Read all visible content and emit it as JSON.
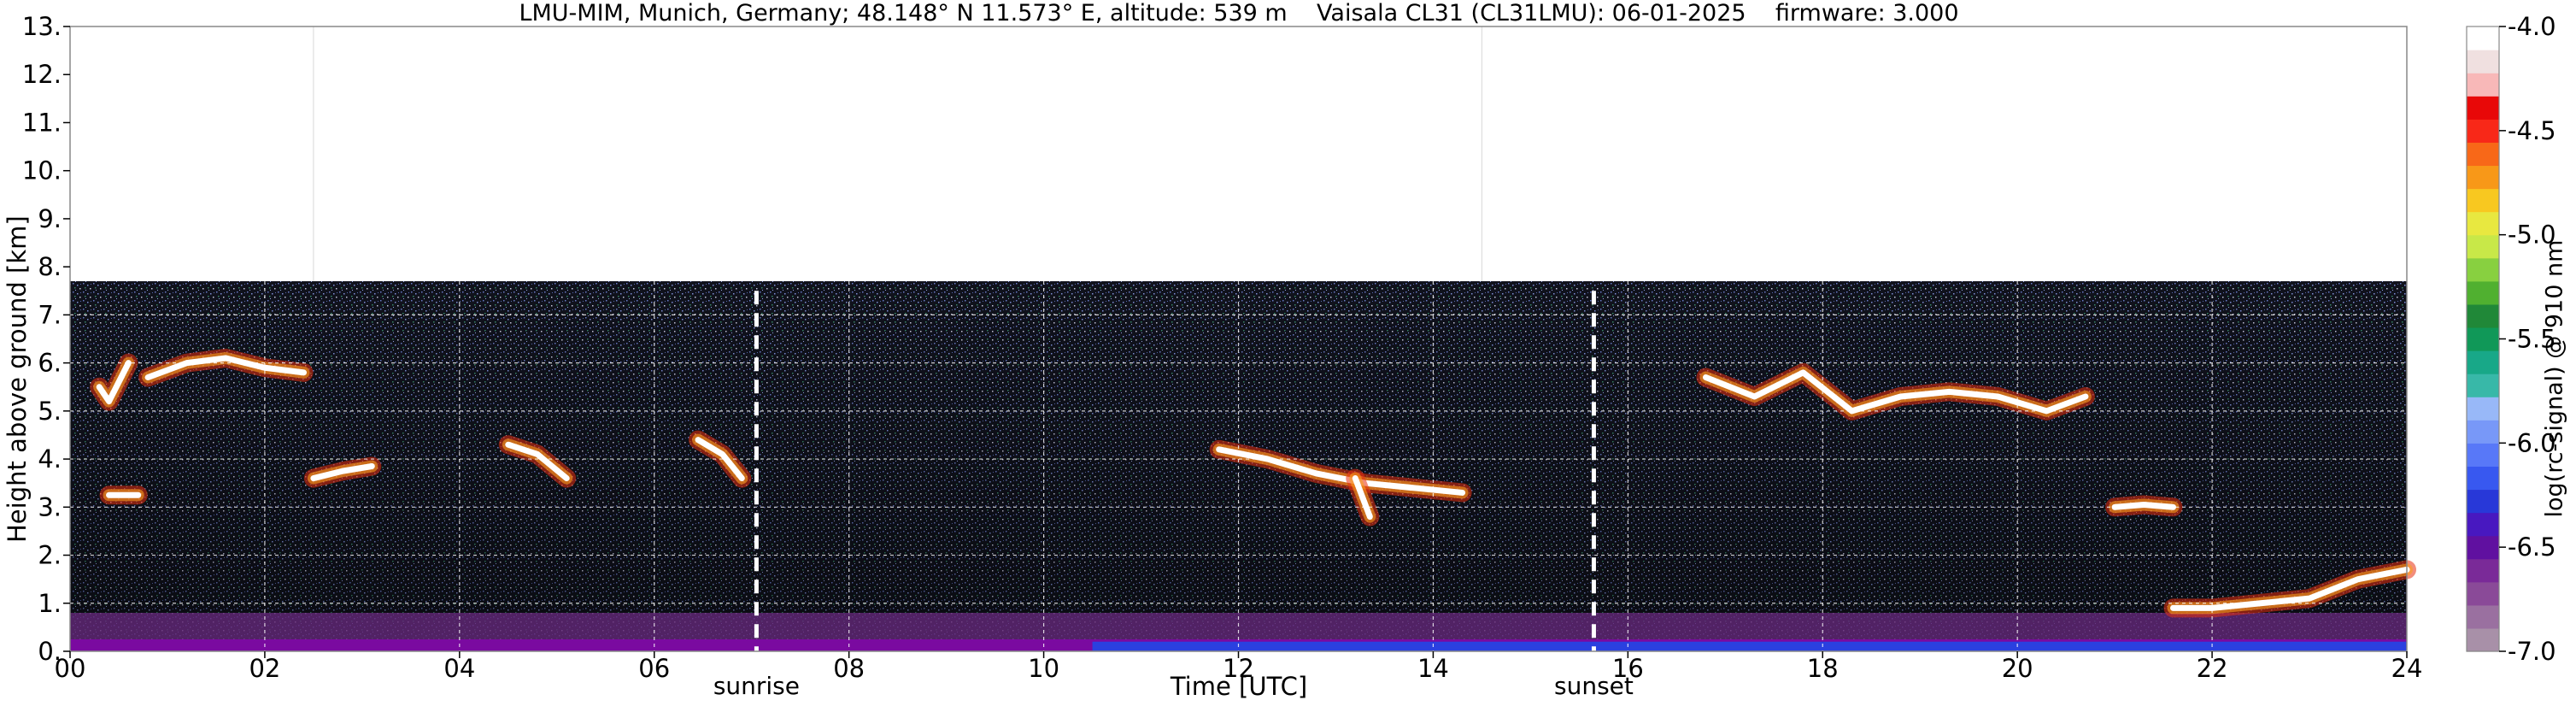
{
  "title": "LMU-MIM, Munich, Germany; 48.148° N 11.573° E, altitude: 539 m    Vaisala CL31 (CL31LMU): 06-01-2025    firmware: 3.000",
  "colorbar": {
    "label": "log(rc-signal) @ 910 nm",
    "ticks": [
      "-4.0",
      "-4.5",
      "-5.0",
      "-5.5",
      "-6.0",
      "-6.5",
      "-7.0"
    ],
    "colors": [
      "#a890a8",
      "#9a70a0",
      "#8a4a98",
      "#7a2a98",
      "#6010a0",
      "#4818c0",
      "#2838d8",
      "#3858f0",
      "#5878f8",
      "#7898f8",
      "#98b8f8",
      "#38b8a8",
      "#18a888",
      "#109858",
      "#208838",
      "#50b030",
      "#88d040",
      "#c8e848",
      "#e8e840",
      "#f8c820",
      "#f89818",
      "#f86818",
      "#f82818",
      "#e80808",
      "#f8b8b8",
      "#f0e0e0",
      "#ffffff"
    ]
  },
  "annotations": {
    "sunrise": "sunrise",
    "sunset": "sunset"
  },
  "chart_data": {
    "type": "heatmap",
    "title": "LMU-MIM, Munich, Germany; 48.148° N 11.573° E, altitude: 539 m    Vaisala CL31 (CL31LMU): 06-01-2025    firmware: 3.000",
    "xlabel": "Time [UTC]",
    "ylabel": "Height above ground [km]",
    "xlim": [
      0,
      24
    ],
    "ylim": [
      0,
      13
    ],
    "xticks": [
      "00",
      "02",
      "04",
      "06",
      "08",
      "10",
      "12",
      "14",
      "16",
      "18",
      "20",
      "22",
      "24"
    ],
    "xtick_values": [
      0,
      2,
      4,
      6,
      8,
      10,
      12,
      14,
      16,
      18,
      20,
      22,
      24
    ],
    "yticks": [
      "0.",
      "1.",
      "2.",
      "3.",
      "4.",
      "5.",
      "6.",
      "7.",
      "8.",
      "9.",
      "10.",
      "11.",
      "12.",
      "13."
    ],
    "ytick_values": [
      0,
      1,
      2,
      3,
      4,
      5,
      6,
      7,
      8,
      9,
      10,
      11,
      12,
      13
    ],
    "data_top_km": 7.7,
    "sunrise_hour": 7.05,
    "sunset_hour": 15.65,
    "colorbar_range": [
      -7.0,
      -4.0
    ],
    "grid": true,
    "layers": [
      {
        "name": "cloud",
        "hours": [
          0.3,
          0.4,
          0.5,
          0.6
        ],
        "heights_km": [
          5.5,
          5.2,
          5.6,
          6.0
        ]
      },
      {
        "name": "cloud",
        "hours": [
          0.8,
          1.2,
          1.6,
          2.0,
          2.4
        ],
        "heights_km": [
          5.7,
          6.0,
          6.1,
          5.9,
          5.8
        ]
      },
      {
        "name": "cloud",
        "hours": [
          0.4,
          0.7
        ],
        "heights_km": [
          3.25,
          3.25
        ]
      },
      {
        "name": "cloud",
        "hours": [
          2.5,
          2.8,
          3.1
        ],
        "heights_km": [
          3.6,
          3.75,
          3.85
        ]
      },
      {
        "name": "cloud",
        "hours": [
          4.5,
          4.8,
          5.1
        ],
        "heights_km": [
          4.3,
          4.1,
          3.6
        ]
      },
      {
        "name": "cloud",
        "hours": [
          6.45,
          6.7,
          6.9
        ],
        "heights_km": [
          4.4,
          4.1,
          3.6
        ]
      },
      {
        "name": "cloud",
        "hours": [
          11.8,
          12.3,
          12.8,
          13.3,
          13.8,
          14.3
        ],
        "heights_km": [
          4.2,
          4.0,
          3.7,
          3.5,
          3.4,
          3.3
        ]
      },
      {
        "name": "cloud",
        "hours": [
          13.2,
          13.35
        ],
        "heights_km": [
          3.6,
          2.8
        ]
      },
      {
        "name": "cloud",
        "hours": [
          16.8,
          17.3,
          17.8,
          18.3,
          18.8,
          19.3,
          19.8,
          20.3,
          20.7
        ],
        "heights_km": [
          5.7,
          5.3,
          5.8,
          5.0,
          5.3,
          5.4,
          5.3,
          5.0,
          5.3
        ]
      },
      {
        "name": "cloud",
        "hours": [
          21.0,
          21.3,
          21.6
        ],
        "heights_km": [
          3.0,
          3.05,
          3.0
        ]
      },
      {
        "name": "cloud",
        "hours": [
          21.6,
          22.0,
          22.5,
          23.0,
          23.5,
          24.0
        ],
        "heights_km": [
          0.9,
          0.9,
          1.0,
          1.1,
          1.5,
          1.7
        ]
      }
    ]
  }
}
